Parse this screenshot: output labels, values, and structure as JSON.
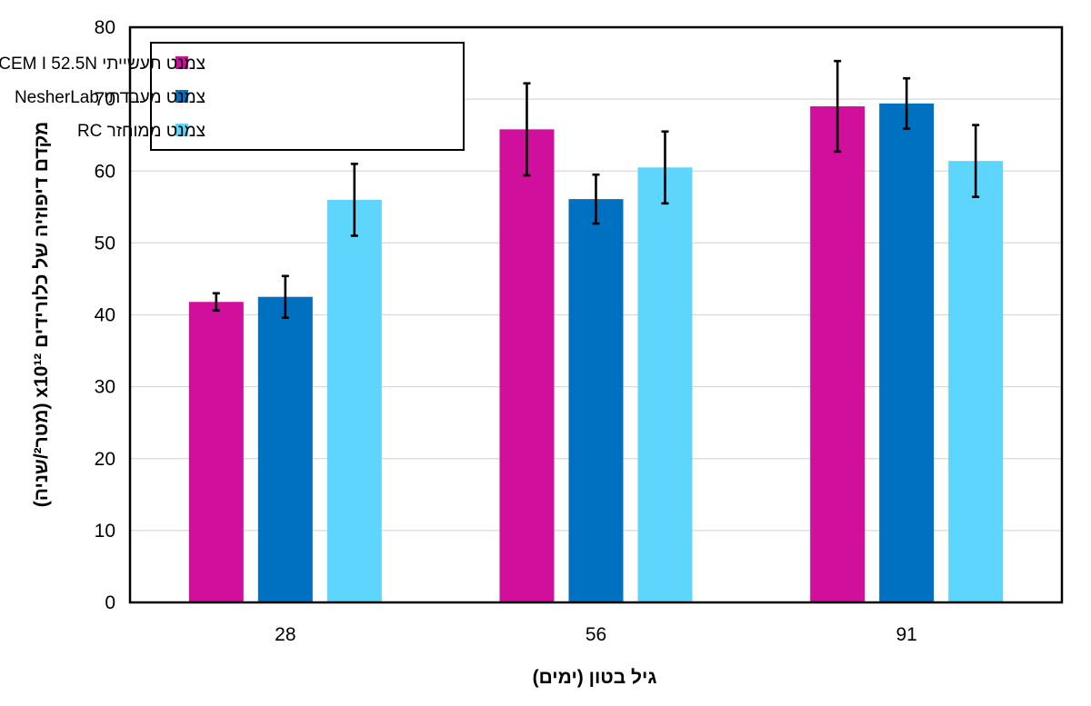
{
  "chart_data": {
    "type": "bar",
    "categories": [
      "28",
      "56",
      "91"
    ],
    "series": [
      {
        "name": "צמנט תעשייתי CEM I 52.5N",
        "color": "#d00f9c",
        "values": [
          41.8,
          65.8,
          69.0
        ],
        "error": [
          1.2,
          6.4,
          6.3
        ]
      },
      {
        "name": "צמנט מעבדתי NesherLab",
        "color": "#0070c0",
        "values": [
          42.5,
          56.1,
          69.4
        ],
        "error": [
          2.9,
          3.4,
          3.5
        ]
      },
      {
        "name": "צמנט ממוחזר RC",
        "color": "#5dd5fc",
        "values": [
          56.0,
          60.5,
          61.4
        ],
        "error": [
          5.0,
          5.0,
          5.0
        ]
      }
    ],
    "xlabel": "גיל בטון (ימים)",
    "ylabel": "מקדם דיפוזיה של כלורידים x10¹² (מטר²/שניה)",
    "ylim": [
      0,
      80
    ],
    "yticks": [
      0,
      10,
      20,
      30,
      40,
      50,
      60,
      70,
      80
    ],
    "grid": true,
    "legend": "top-left"
  }
}
